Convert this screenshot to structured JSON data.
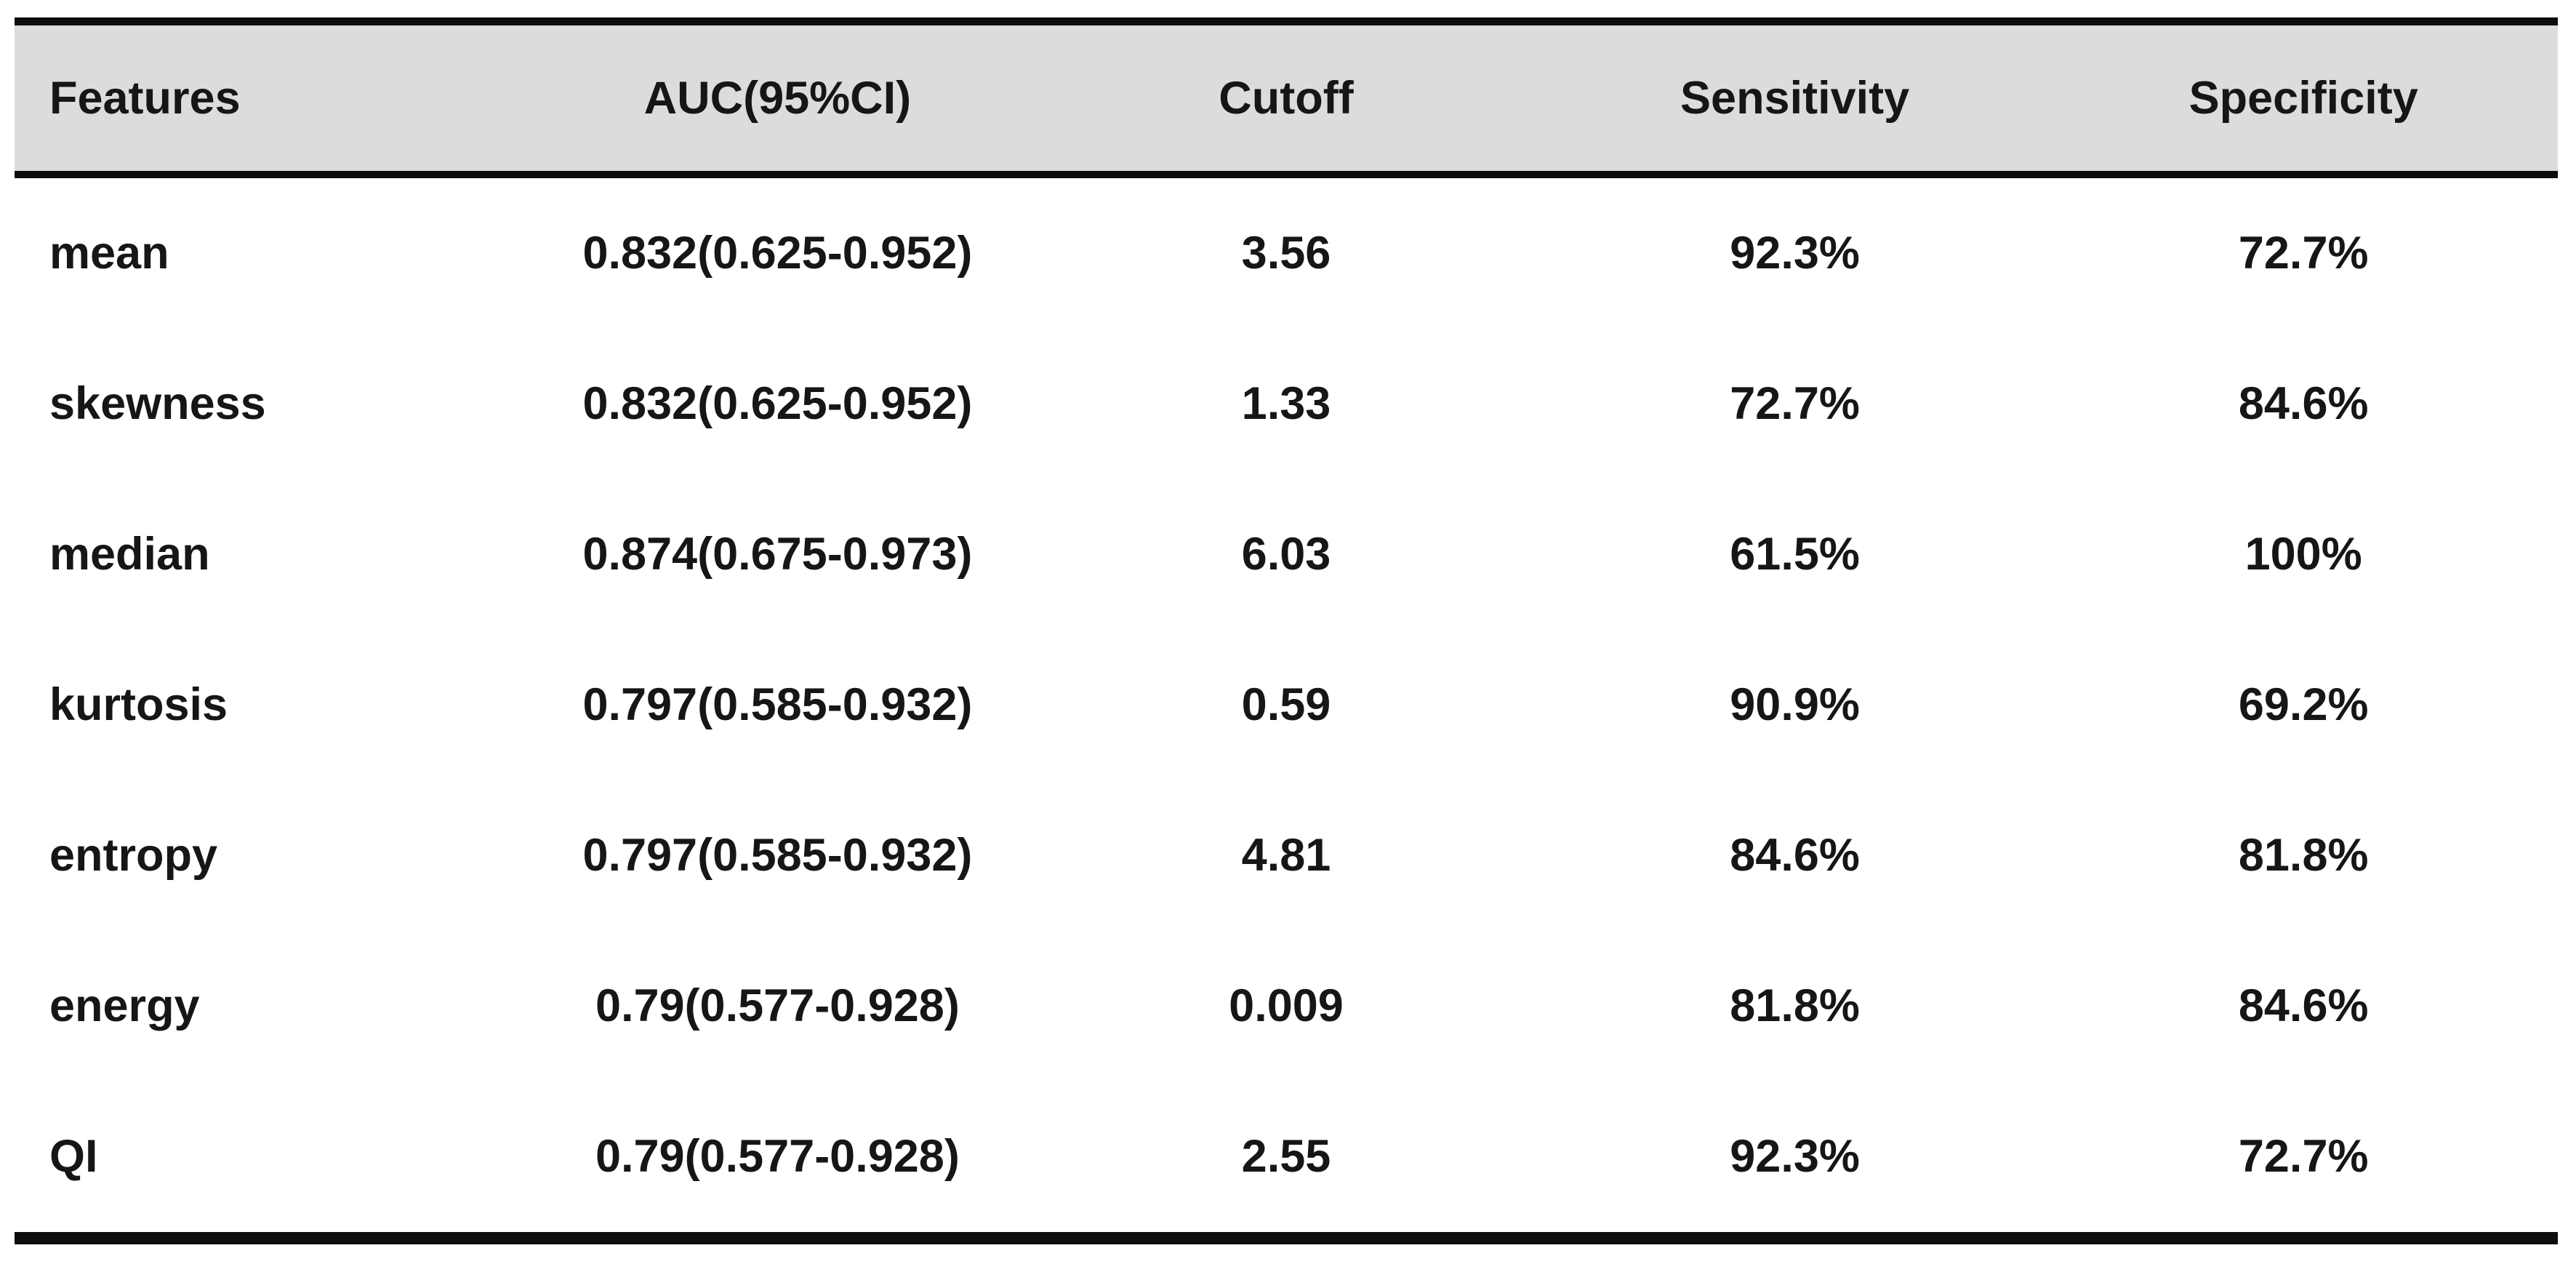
{
  "table": {
    "columns": [
      {
        "label": "Features"
      },
      {
        "label": "AUC(95%CI)"
      },
      {
        "label": "Cutoff"
      },
      {
        "label": "Sensitivity"
      },
      {
        "label": "Specificity"
      }
    ],
    "rows": [
      {
        "feature": "mean",
        "auc": "0.832(0.625-0.952)",
        "cutoff": "3.56",
        "sensitivity": "92.3%",
        "specificity": "72.7%"
      },
      {
        "feature": "skewness",
        "auc": "0.832(0.625-0.952)",
        "cutoff": "1.33",
        "sensitivity": "72.7%",
        "specificity": "84.6%"
      },
      {
        "feature": "median",
        "auc": "0.874(0.675-0.973)",
        "cutoff": "6.03",
        "sensitivity": "61.5%",
        "specificity": "100%"
      },
      {
        "feature": "kurtosis",
        "auc": "0.797(0.585-0.932)",
        "cutoff": "0.59",
        "sensitivity": "90.9%",
        "specificity": "69.2%"
      },
      {
        "feature": "entropy",
        "auc": "0.797(0.585-0.932)",
        "cutoff": "4.81",
        "sensitivity": "84.6%",
        "specificity": "81.8%"
      },
      {
        "feature": "energy",
        "auc": "0.79(0.577-0.928)",
        "cutoff": "0.009",
        "sensitivity": "81.8%",
        "specificity": "84.6%"
      },
      {
        "feature": "QI",
        "auc": "0.79(0.577-0.928)",
        "cutoff": "2.55",
        "sensitivity": "92.3%",
        "specificity": "72.7%"
      }
    ],
    "colors": {
      "header_bg": "#dcdcdc",
      "rule": "#0d0d0d",
      "text": "#161616"
    }
  }
}
